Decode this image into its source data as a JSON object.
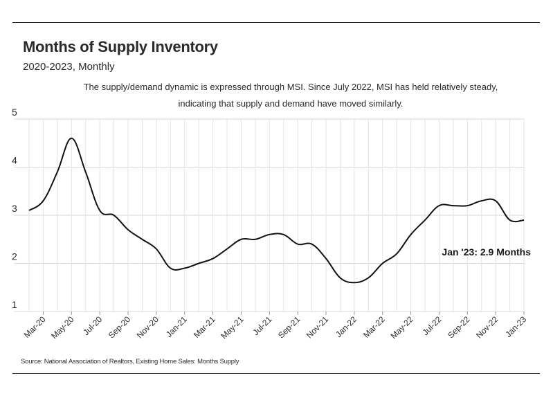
{
  "header": {
    "title": "Months of Supply Inventory",
    "subtitle": "2020-2023, Monthly",
    "note": "The supply/demand dynamic is expressed through MSI. Since July 2022, MSI has held relatively steady, indicating that supply and demand have moved similarly."
  },
  "footer": {
    "source": "Source:  National Association of Realtors, Existing Home Sales: Months Supply"
  },
  "chart_data": {
    "type": "line",
    "title": "Months of Supply Inventory",
    "subtitle": "2020-2023, Monthly",
    "xlabel": "",
    "ylabel": "",
    "ylim": [
      1,
      5
    ],
    "yticks": [
      1,
      2,
      3,
      4,
      5
    ],
    "grid": true,
    "x_tick_labels": [
      "Mar-20",
      "May-20",
      "Jul-20",
      "Sep-20",
      "Nov-20",
      "Jan-21",
      "Mar-21",
      "May-21",
      "Jul-21",
      "Sep-21",
      "Nov-21",
      "Jan-22",
      "Mar-22",
      "May-22",
      "Jul-22",
      "Sep-22",
      "Nov-22",
      "Jan-23"
    ],
    "x": [
      "Feb-20",
      "Mar-20",
      "Apr-20",
      "May-20",
      "Jun-20",
      "Jul-20",
      "Aug-20",
      "Sep-20",
      "Oct-20",
      "Nov-20",
      "Dec-20",
      "Jan-21",
      "Feb-21",
      "Mar-21",
      "Apr-21",
      "May-21",
      "Jun-21",
      "Jul-21",
      "Aug-21",
      "Sep-21",
      "Oct-21",
      "Nov-21",
      "Dec-21",
      "Jan-22",
      "Feb-22",
      "Mar-22",
      "Apr-22",
      "May-22",
      "Jun-22",
      "Jul-22",
      "Aug-22",
      "Sep-22",
      "Oct-22",
      "Nov-22",
      "Dec-22",
      "Jan-23"
    ],
    "series": [
      {
        "values": [
          3.1,
          3.3,
          3.9,
          4.6,
          3.9,
          3.1,
          3.0,
          2.7,
          2.5,
          2.3,
          1.9,
          1.9,
          2.0,
          2.1,
          2.3,
          2.5,
          2.5,
          2.6,
          2.6,
          2.4,
          2.4,
          2.1,
          1.7,
          1.6,
          1.7,
          2.0,
          2.2,
          2.6,
          2.9,
          3.2,
          3.2,
          3.2,
          3.3,
          3.3,
          2.9,
          2.9
        ],
        "color": "#111111"
      }
    ],
    "annotation": "Jan '23: 2.9 Months"
  }
}
